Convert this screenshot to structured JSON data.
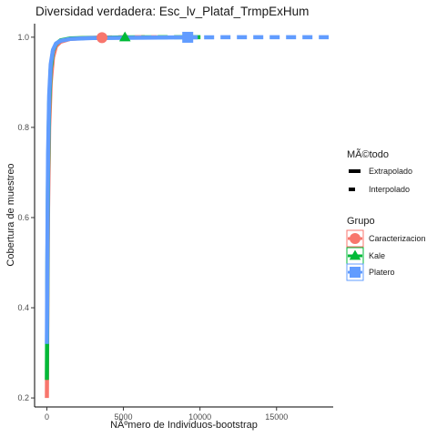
{
  "chart_data": {
    "type": "line",
    "title": "Diversidad verdadera: Esc_lv_Plataf_TrmpExHum",
    "xlabel": "NÃºmero de Individuos-bootstrap",
    "ylabel": "Cobertura de muestreo",
    "xlim": [
      -800,
      18700
    ],
    "ylim": [
      0.18,
      1.03
    ],
    "x_ticks": [
      0,
      5000,
      10000,
      15000
    ],
    "x_tick_labels": [
      "0",
      "5000",
      "10000",
      "15000"
    ],
    "y_ticks": [
      0.2,
      0.4,
      0.6,
      0.8,
      1.0
    ],
    "y_tick_labels": [
      "0.2",
      "0.4",
      "0.6",
      "0.8",
      "1.0"
    ],
    "grid": false,
    "legend_position": "right",
    "linetype_legend": {
      "title": "MÃ©todo",
      "entries": [
        {
          "label": "Extrapolado",
          "style": "solid"
        },
        {
          "label": "Interpolado",
          "style": "dashed"
        }
      ]
    },
    "group_legend": {
      "title": "Grupo",
      "entries": [
        {
          "label": "Caracterizacion",
          "color": "#F8766D",
          "marker": "circle"
        },
        {
          "label": "Kale",
          "color": "#00BA38",
          "marker": "triangle"
        },
        {
          "label": "Platero",
          "color": "#619CFF",
          "marker": "square"
        }
      ]
    },
    "series": [
      {
        "name": "Caracterizacion",
        "color": "#F8766D",
        "marker": "circle",
        "observed": {
          "x": 3600,
          "y": 0.999
        },
        "interpolated": {
          "x": [
            0,
            40,
            80,
            150,
            250,
            400,
            600,
            900,
            1500,
            2500,
            3600
          ],
          "y": [
            0.2,
            0.42,
            0.62,
            0.8,
            0.9,
            0.955,
            0.98,
            0.99,
            0.996,
            0.998,
            0.999
          ]
        },
        "extrapolated": {
          "x": [
            3600,
            5000,
            7200
          ],
          "y": [
            0.999,
            1.0,
            1.0
          ]
        }
      },
      {
        "name": "Kale",
        "color": "#00BA38",
        "marker": "triangle",
        "observed": {
          "x": 5100,
          "y": 0.9995
        },
        "interpolated": {
          "x": [
            0,
            40,
            80,
            150,
            250,
            400,
            600,
            900,
            1500,
            2500,
            5100
          ],
          "y": [
            0.24,
            0.5,
            0.7,
            0.85,
            0.93,
            0.97,
            0.985,
            0.993,
            0.997,
            0.998,
            0.9995
          ]
        },
        "extrapolated": {
          "x": [
            5100,
            7500,
            10200
          ],
          "y": [
            0.9995,
            1.0,
            1.0
          ]
        }
      },
      {
        "name": "Platero",
        "color": "#619CFF",
        "marker": "square",
        "observed": {
          "x": 9200,
          "y": 0.9998
        },
        "interpolated": {
          "x": [
            0,
            40,
            80,
            150,
            250,
            400,
            600,
            900,
            1500,
            3000,
            9200
          ],
          "y": [
            0.32,
            0.55,
            0.74,
            0.87,
            0.94,
            0.972,
            0.986,
            0.992,
            0.996,
            0.998,
            0.9998
          ]
        },
        "extrapolated": {
          "x": [
            9200,
            12000,
            18400
          ],
          "y": [
            0.9998,
            1.0,
            1.0
          ]
        }
      }
    ]
  }
}
